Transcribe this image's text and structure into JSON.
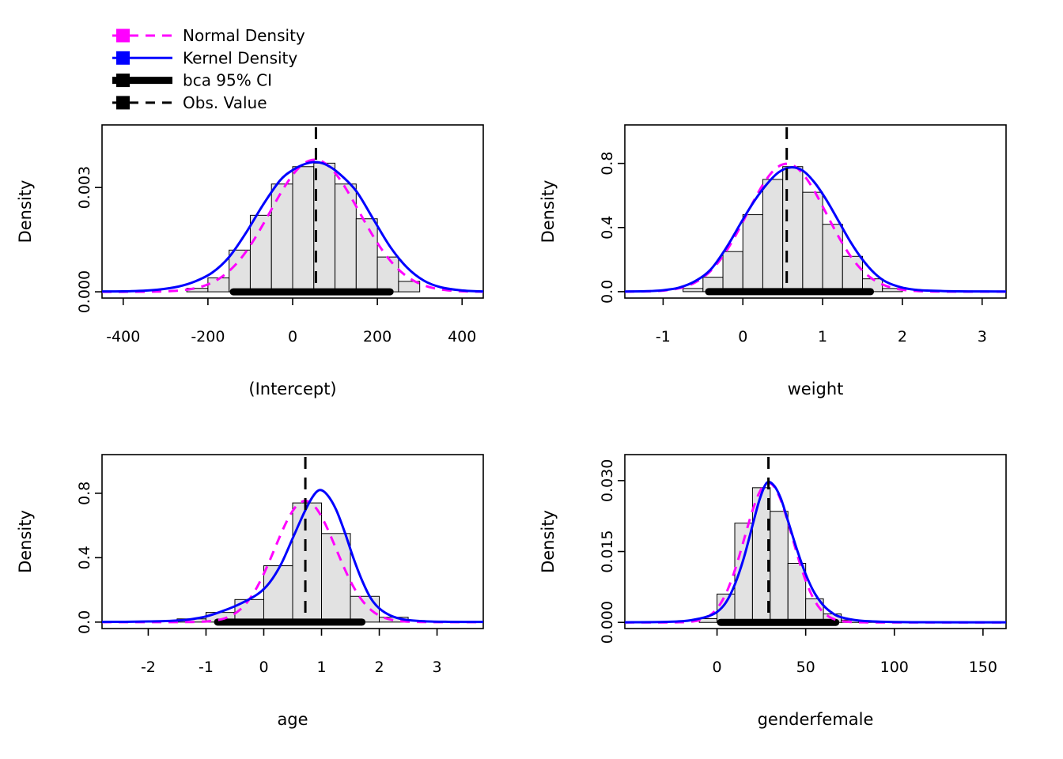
{
  "style": {
    "background": "#FFFFFF",
    "hist_fill": "#E2E2E2",
    "hist_border": "#000000",
    "axis_color": "#000000",
    "normal_color": "#FF00FF",
    "kernel_color": "#0000FF",
    "ci_color": "#000000",
    "obs_color": "#000000"
  },
  "legend": {
    "position": "top-left",
    "items": [
      {
        "label": "Normal Density",
        "color": "#FF00FF",
        "line": "dashed",
        "lwd": 3,
        "icon": "normal-density-swatch"
      },
      {
        "label": "Kernel Density",
        "color": "#0000FF",
        "line": "solid",
        "lwd": 3,
        "icon": "kernel-density-swatch"
      },
      {
        "label": "bca 95% CI",
        "color": "#000000",
        "line": "solid",
        "lwd": 9,
        "icon": "ci-swatch"
      },
      {
        "label": "Obs. Value",
        "color": "#000000",
        "line": "dashed",
        "lwd": 3,
        "icon": "obs-value-swatch"
      }
    ]
  },
  "chart_data": [
    {
      "type": "bar",
      "subtype": "histogram-with-density",
      "xlabel": "(Intercept)",
      "ylabel": "Density",
      "xlim": [
        -450,
        450
      ],
      "ylim": [
        -0.00018,
        0.0048
      ],
      "grid": false,
      "xticks": {
        "values": [
          -400,
          -200,
          0,
          200,
          400
        ],
        "labels": [
          "-400",
          "-200",
          "0",
          "200",
          "400"
        ]
      },
      "yticks": {
        "values": [
          0,
          0.003
        ],
        "labels": [
          "0.000",
          "0.003"
        ]
      },
      "hist": {
        "breaks": [
          -250,
          -200,
          -150,
          -100,
          -50,
          0,
          50,
          100,
          150,
          200,
          250,
          300
        ],
        "density": [
          0.0001,
          0.0004,
          0.0012,
          0.0022,
          0.0031,
          0.0036,
          0.0037,
          0.0031,
          0.0021,
          0.001,
          0.0003
        ]
      },
      "normal_density": {
        "mean": 52,
        "sd": 105
      },
      "kernel_density": {
        "x": [
          -450,
          -380,
          -320,
          -270,
          -230,
          -190,
          -150,
          -110,
          -70,
          -30,
          0,
          30,
          55,
          80,
          110,
          150,
          190,
          230,
          270,
          310,
          350,
          400,
          450
        ],
        "y": [
          1e-05,
          2e-05,
          6e-05,
          0.00015,
          0.0003,
          0.00055,
          0.001,
          0.0017,
          0.0025,
          0.0032,
          0.0035,
          0.00368,
          0.00373,
          0.00365,
          0.0034,
          0.0029,
          0.0021,
          0.0013,
          0.0007,
          0.00032,
          0.00013,
          4e-05,
          1e-05
        ]
      },
      "bca_ci_95": [
        -140,
        230
      ],
      "obs_value": 55
    },
    {
      "type": "bar",
      "subtype": "histogram-with-density",
      "xlabel": "weight",
      "ylabel": "Density",
      "xlim": [
        -1.48,
        3.3
      ],
      "ylim": [
        -0.04,
        1.04
      ],
      "grid": false,
      "xticks": {
        "values": [
          -1,
          0,
          1,
          2,
          3
        ],
        "labels": [
          "-1",
          "0",
          "1",
          "2",
          "3"
        ]
      },
      "yticks": {
        "values": [
          0,
          0.4,
          0.8
        ],
        "labels": [
          "0.0",
          "0.4",
          "0.8"
        ]
      },
      "hist": {
        "breaks": [
          -0.75,
          -0.5,
          -0.25,
          0,
          0.25,
          0.5,
          0.75,
          1,
          1.25,
          1.5,
          1.75,
          2
        ],
        "density": [
          0.02,
          0.09,
          0.25,
          0.48,
          0.7,
          0.78,
          0.62,
          0.42,
          0.22,
          0.08,
          0.02
        ]
      },
      "normal_density": {
        "mean": 0.55,
        "sd": 0.5
      },
      "kernel_density": {
        "x": [
          -1.48,
          -1.2,
          -1.0,
          -0.8,
          -0.6,
          -0.4,
          -0.2,
          0,
          0.15,
          0.3,
          0.45,
          0.6,
          0.75,
          0.9,
          1.05,
          1.2,
          1.35,
          1.5,
          1.65,
          1.8,
          2.0,
          2.2,
          2.5,
          2.9,
          3.3
        ],
        "y": [
          0.0008,
          0.003,
          0.009,
          0.025,
          0.065,
          0.14,
          0.28,
          0.45,
          0.57,
          0.67,
          0.745,
          0.775,
          0.755,
          0.68,
          0.57,
          0.44,
          0.31,
          0.2,
          0.115,
          0.06,
          0.025,
          0.01,
          0.004,
          0.0015,
          0.0008
        ]
      },
      "bca_ci_95": [
        -0.43,
        1.6
      ],
      "obs_value": 0.55
    },
    {
      "type": "bar",
      "subtype": "histogram-with-density",
      "xlabel": "age",
      "ylabel": "Density",
      "xlim": [
        -2.8,
        3.8
      ],
      "ylim": [
        -0.04,
        1.04
      ],
      "grid": false,
      "xticks": {
        "values": [
          -2,
          -1,
          0,
          1,
          2,
          3
        ],
        "labels": [
          "-2",
          "-1",
          "0",
          "1",
          "2",
          "3"
        ]
      },
      "yticks": {
        "values": [
          0,
          0.4,
          0.8
        ],
        "labels": [
          "0.0",
          "0.4",
          "0.8"
        ]
      },
      "hist": {
        "breaks": [
          -1.5,
          -1,
          -0.5,
          0,
          0.5,
          1,
          1.5,
          2,
          2.5
        ],
        "density": [
          0.02,
          0.06,
          0.14,
          0.35,
          0.74,
          0.55,
          0.16,
          0.03
        ]
      },
      "normal_density": {
        "mean": 0.72,
        "sd": 0.53
      },
      "kernel_density": {
        "x": [
          -2.8,
          -2.4,
          -2.0,
          -1.6,
          -1.3,
          -1.0,
          -0.7,
          -0.4,
          -0.1,
          0.1,
          0.3,
          0.5,
          0.7,
          0.85,
          0.97,
          1.1,
          1.25,
          1.4,
          1.55,
          1.7,
          1.85,
          2.0,
          2.2,
          2.45,
          2.8,
          3.2,
          3.8
        ],
        "y": [
          0.001,
          0.002,
          0.004,
          0.008,
          0.016,
          0.035,
          0.07,
          0.115,
          0.175,
          0.245,
          0.36,
          0.52,
          0.68,
          0.78,
          0.82,
          0.79,
          0.7,
          0.56,
          0.4,
          0.26,
          0.15,
          0.085,
          0.04,
          0.015,
          0.005,
          0.002,
          0.001
        ]
      },
      "bca_ci_95": [
        -0.8,
        1.7
      ],
      "obs_value": 0.72
    },
    {
      "type": "bar",
      "subtype": "histogram-with-density",
      "xlabel": "genderfemale",
      "ylabel": "Density",
      "xlim": [
        -52,
        163
      ],
      "ylim": [
        -0.0013,
        0.0355
      ],
      "grid": false,
      "xticks": {
        "values": [
          0,
          50,
          100,
          150
        ],
        "labels": [
          "0",
          "50",
          "100",
          "150"
        ]
      },
      "yticks": {
        "values": [
          0,
          0.015,
          0.03
        ],
        "labels": [
          "0.000",
          "0.015",
          "0.030"
        ]
      },
      "hist": {
        "breaks": [
          -10,
          0,
          10,
          20,
          30,
          40,
          50,
          60,
          70,
          80,
          90
        ],
        "density": [
          0.0008,
          0.006,
          0.021,
          0.0285,
          0.0235,
          0.0125,
          0.005,
          0.0018,
          0.0005,
          0.0002
        ]
      },
      "normal_density": {
        "mean": 29,
        "sd": 13.5
      },
      "kernel_density": {
        "x": [
          -52,
          -30,
          -18,
          -10,
          -5,
          0,
          5,
          10,
          15,
          20,
          24,
          28,
          32,
          36,
          40,
          45,
          50,
          55,
          60,
          65,
          70,
          80,
          95,
          115,
          163
        ],
        "y": [
          2e-05,
          0.0001,
          0.0003,
          0.0008,
          0.0013,
          0.0022,
          0.0042,
          0.008,
          0.0135,
          0.0205,
          0.026,
          0.0295,
          0.029,
          0.0262,
          0.0215,
          0.0155,
          0.0102,
          0.0062,
          0.0036,
          0.002,
          0.0011,
          0.0004,
          0.00012,
          4e-05,
          2e-05
        ]
      },
      "bca_ci_95": [
        2,
        67
      ],
      "obs_value": 29
    }
  ]
}
